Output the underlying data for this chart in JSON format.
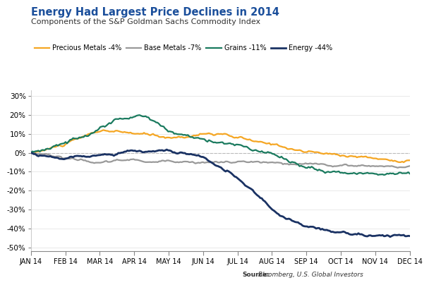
{
  "title": "Energy Had Largest Price Declines in 2014",
  "subtitle": "Components of the S&P Goldman Sachs Commodity Index",
  "source_bold": "Source:",
  "source_rest": " Bloomberg, U.S. Global Investors",
  "title_color": "#1b4f9b",
  "subtitle_color": "#333333",
  "background_color": "#ffffff",
  "ylim": [
    -52,
    33
  ],
  "yticks": [
    30,
    20,
    10,
    0,
    -10,
    -20,
    -30,
    -40,
    -50
  ],
  "xlabels": [
    "JAN 14",
    "FEB 14",
    "MAR 14",
    "APR 14",
    "MAY 14",
    "JUN 14",
    "JUL 14",
    "AUG 14",
    "SEP 14",
    "OCT 14",
    "NOV 14",
    "DEC 14"
  ],
  "series": {
    "precious_metals": {
      "label": "Precious Metals -4%",
      "color": "#f5a623",
      "linewidth": 1.6
    },
    "base_metals": {
      "label": "Base Metals -7%",
      "color": "#999999",
      "linewidth": 1.6
    },
    "grains": {
      "label": "Grains -11%",
      "color": "#1a7a5e",
      "linewidth": 1.6
    },
    "energy": {
      "label": "Energy -44%",
      "color": "#1a3263",
      "linewidth": 2.0
    }
  },
  "precious_metals_waypoints": [
    0,
    2,
    5,
    9,
    12,
    11,
    10,
    9,
    8,
    9,
    10,
    9,
    7,
    5,
    3,
    1,
    0,
    -1,
    -2,
    -3,
    -4,
    -4
  ],
  "base_metals_waypoints": [
    0,
    -1,
    -3,
    -4,
    -5,
    -4,
    -4,
    -5,
    -5,
    -5,
    -5,
    -5,
    -5,
    -5,
    -6,
    -6,
    -6,
    -7,
    -7,
    -7,
    -7,
    -7
  ],
  "grains_waypoints": [
    0,
    2,
    5,
    9,
    14,
    18,
    20,
    16,
    10,
    8,
    6,
    5,
    3,
    0,
    -3,
    -7,
    -9,
    -10,
    -11,
    -11,
    -11,
    -11
  ],
  "energy_waypoints": [
    0,
    -2,
    -3,
    -2,
    -1,
    0,
    1,
    1,
    0,
    -1,
    -5,
    -10,
    -18,
    -26,
    -34,
    -38,
    -40,
    -42,
    -43,
    -44,
    -44,
    -44
  ]
}
